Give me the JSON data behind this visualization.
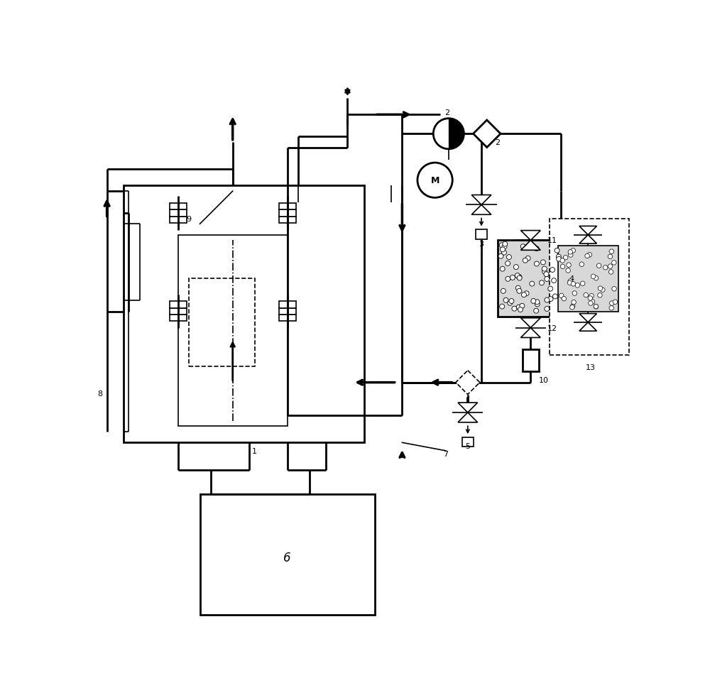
{
  "bg_color": "#ffffff",
  "lw": 2.0,
  "lw_thin": 1.2,
  "lw_thick": 2.5
}
